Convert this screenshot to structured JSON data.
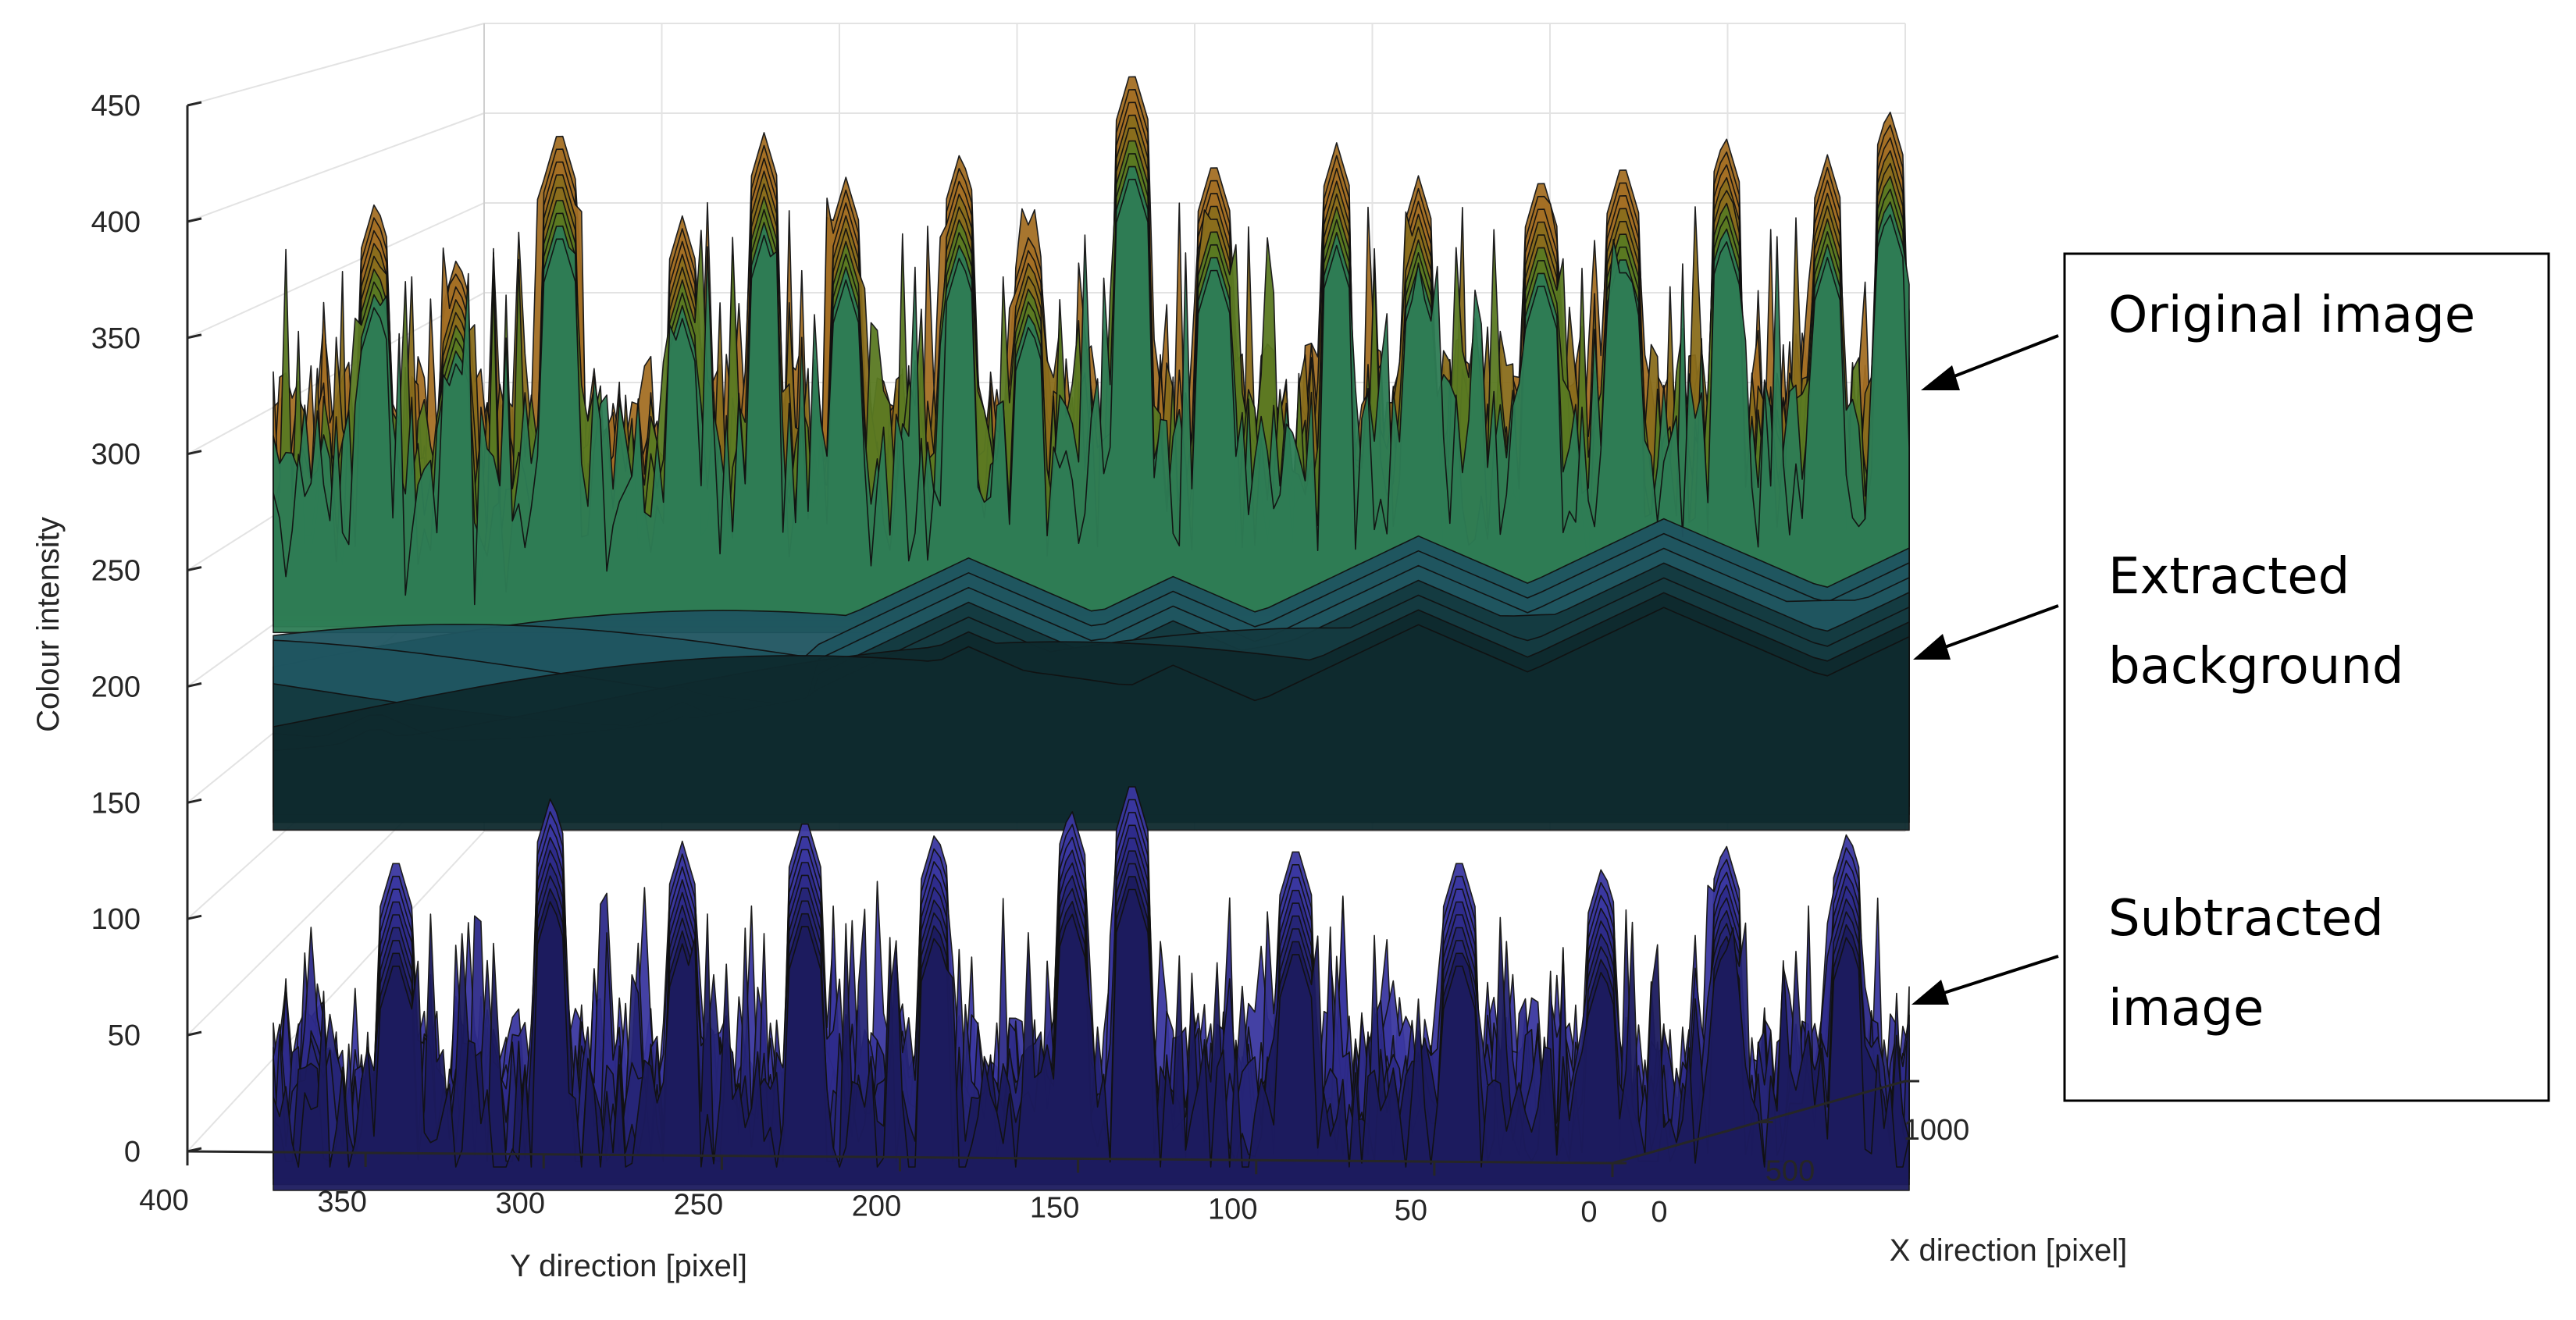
{
  "chart_data": {
    "type": "surface3d",
    "title": "",
    "zlabel": "Colour intensity",
    "ylabel": "Y direction [pixel]",
    "xlabel": "X direction [pixel]",
    "zlim": [
      0,
      450
    ],
    "ylim": [
      0,
      400
    ],
    "xlim": [
      0,
      1000
    ],
    "z_ticks": [
      0,
      50,
      100,
      150,
      200,
      250,
      300,
      350,
      400,
      450
    ],
    "y_ticks": [
      "400",
      "350",
      "300",
      "250",
      "200",
      "150",
      "100",
      "50",
      "0"
    ],
    "x_ticks": [
      "0",
      "500",
      "1000"
    ],
    "grid": true,
    "series": [
      {
        "name": "Original image",
        "base": 275,
        "peak_max": 445,
        "min": 240,
        "colors": [
          "#2e7d55",
          "#5a7a22",
          "#8a6d1c",
          "#a46f24"
        ],
        "peaks": [
          {
            "y": 375,
            "z": 395
          },
          {
            "y": 355,
            "z": 370
          },
          {
            "y": 330,
            "z": 425
          },
          {
            "y": 300,
            "z": 385
          },
          {
            "y": 280,
            "z": 420
          },
          {
            "y": 260,
            "z": 400
          },
          {
            "y": 232,
            "z": 410
          },
          {
            "y": 215,
            "z": 380
          },
          {
            "y": 190,
            "z": 445
          },
          {
            "y": 170,
            "z": 405
          },
          {
            "y": 140,
            "z": 410
          },
          {
            "y": 120,
            "z": 395
          },
          {
            "y": 90,
            "z": 395
          },
          {
            "y": 70,
            "z": 400
          },
          {
            "y": 45,
            "z": 410
          },
          {
            "y": 20,
            "z": 400
          },
          {
            "y": 5,
            "z": 420
          }
        ]
      },
      {
        "name": "Extracted background",
        "base": 195,
        "peak_max": 245,
        "min": 155,
        "colors": [
          "#0e2a2e",
          "#143a40",
          "#1f5560"
        ],
        "peaks": [
          {
            "y": 375,
            "z": 200
          },
          {
            "y": 350,
            "z": 175
          },
          {
            "y": 300,
            "z": 195
          },
          {
            "y": 230,
            "z": 235
          },
          {
            "y": 180,
            "z": 225
          },
          {
            "y": 120,
            "z": 240
          },
          {
            "y": 60,
            "z": 245
          },
          {
            "y": 0,
            "z": 230
          }
        ]
      },
      {
        "name": "Subtracted image",
        "base": 10,
        "peak_max": 148,
        "min": 0,
        "colors": [
          "#1c1b5e",
          "#262577",
          "#2e2b8a",
          "#3a37a0"
        ],
        "peaks": [
          {
            "y": 370,
            "z": 115
          },
          {
            "y": 332,
            "z": 140
          },
          {
            "y": 300,
            "z": 120
          },
          {
            "y": 270,
            "z": 132
          },
          {
            "y": 238,
            "z": 125
          },
          {
            "y": 205,
            "z": 135
          },
          {
            "y": 190,
            "z": 148
          },
          {
            "y": 150,
            "z": 120
          },
          {
            "y": 110,
            "z": 115
          },
          {
            "y": 75,
            "z": 110
          },
          {
            "y": 45,
            "z": 120
          },
          {
            "y": 15,
            "z": 125
          }
        ]
      }
    ]
  },
  "annotations": {
    "labels": [
      "Original image",
      "Extracted background",
      "Subtracted image"
    ]
  }
}
